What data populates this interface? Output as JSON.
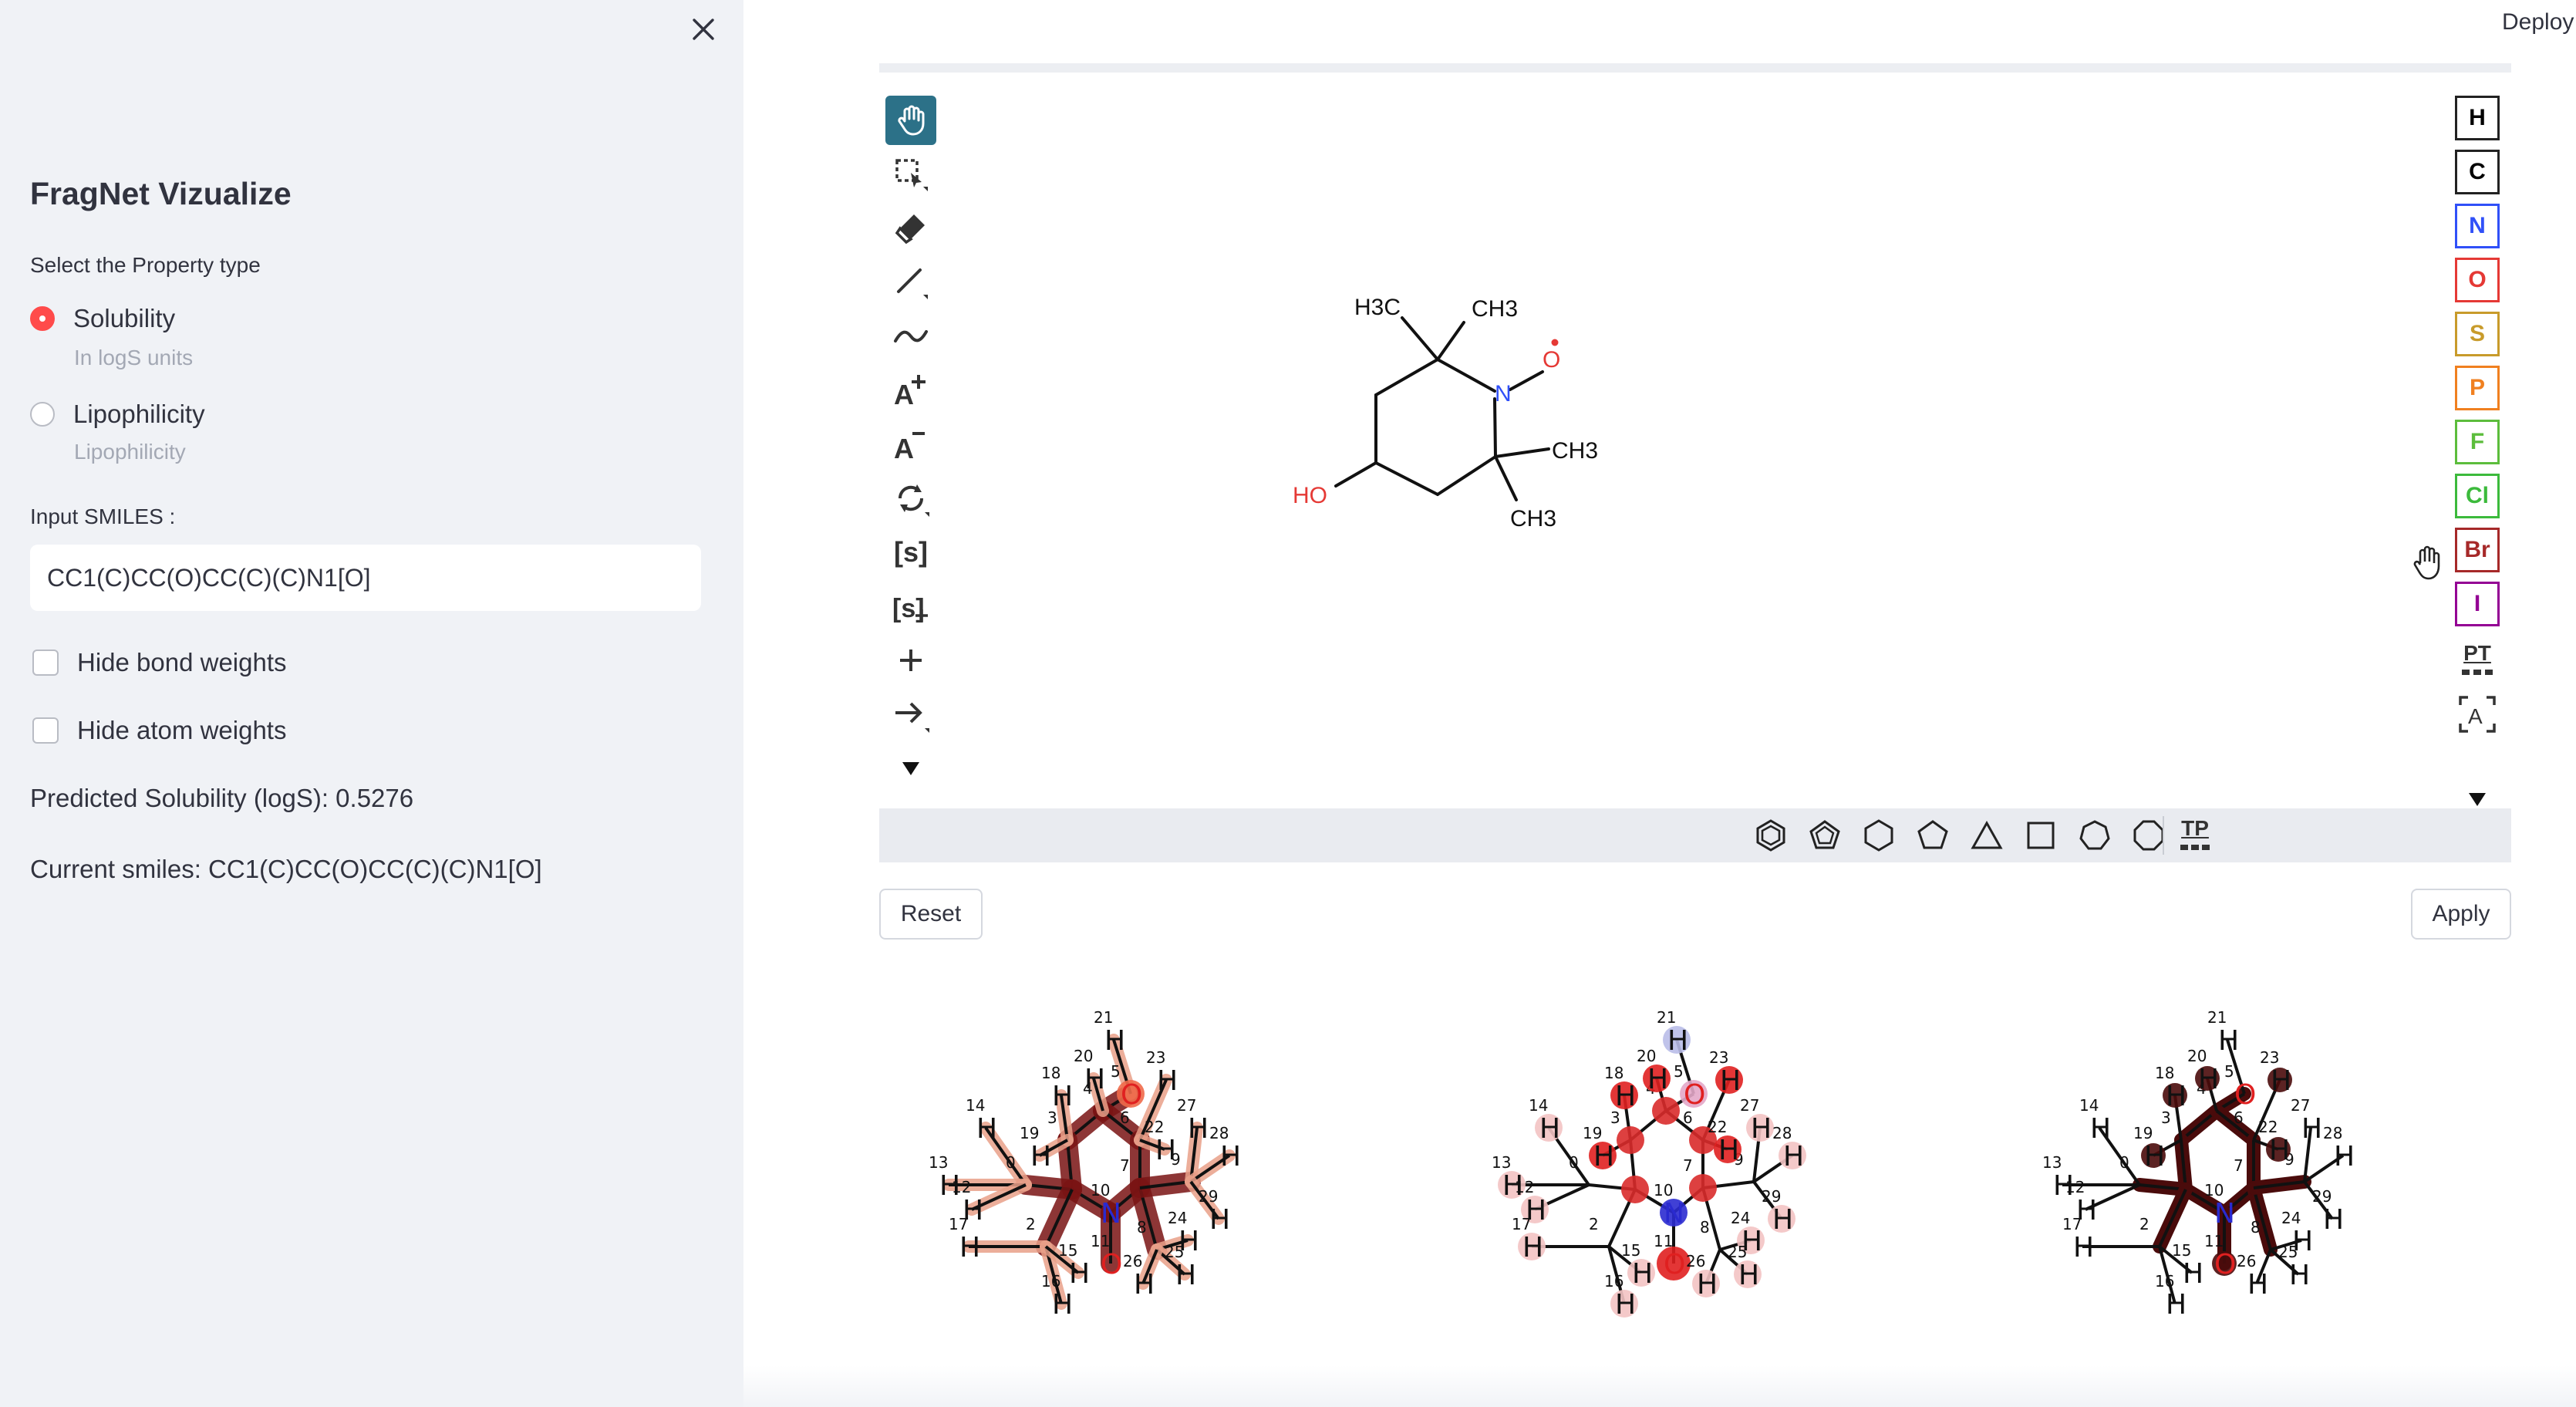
{
  "sidebar": {
    "title": "FragNet Vizualize",
    "property_label": "Select the Property type",
    "options": [
      {
        "label": "Solubility",
        "caption": "In logS units",
        "selected": true
      },
      {
        "label": "Lipophilicity",
        "caption": "Lipophilicity",
        "selected": false
      }
    ],
    "smiles_label": "Input SMILES :",
    "smiles_value": "CC1(C)CC(O)CC(C)(C)N1[O]",
    "checkboxes": [
      {
        "label": "Hide bond weights",
        "checked": false
      },
      {
        "label": "Hide atom weights",
        "checked": false
      }
    ],
    "prediction": "Predicted Solubility (logS): 0.5276",
    "current_smiles": "Current smiles: CC1(C)CC(O)CC(C)(C)N1[O]"
  },
  "header": {
    "deploy": "Deploy"
  },
  "editor": {
    "left_tools": [
      "hand-tool",
      "select-tool",
      "eraser-tool",
      "bond-tool",
      "chain-tool",
      "charge-plus-tool",
      "charge-minus-tool",
      "rotate-tool",
      "sgroup-tool",
      "sgroup-plus-tool",
      "add-tool",
      "reaction-arrow-tool",
      "more-tools"
    ],
    "elements": [
      {
        "symbol": "H",
        "color": "#000000"
      },
      {
        "symbol": "C",
        "color": "#000000"
      },
      {
        "symbol": "N",
        "color": "#3050f8"
      },
      {
        "symbol": "O",
        "color": "#e53935"
      },
      {
        "symbol": "S",
        "color": "#c89b2b"
      },
      {
        "symbol": "P",
        "color": "#f08020"
      },
      {
        "symbol": "F",
        "color": "#5cbd3c"
      },
      {
        "symbol": "Cl",
        "color": "#3cba3c"
      },
      {
        "symbol": "Br",
        "color": "#a62929"
      },
      {
        "symbol": "I",
        "color": "#940094"
      }
    ],
    "periodic_table": "PT",
    "template_label": "TP",
    "molecule_labels": {
      "h3c": "H3C",
      "ch3_top": "CH3",
      "ch3_right": "CH3",
      "ch3_bottom": "CH3",
      "n": "N",
      "o": "O",
      "ho": "HO"
    },
    "reset": "Reset",
    "apply": "Apply"
  },
  "colors": {
    "accent": "#ff4b4b",
    "active_tool": "#2c7188",
    "sidebar_bg": "#f0f2f6",
    "nitrogen": "#3050f8",
    "oxygen": "#e53935"
  }
}
